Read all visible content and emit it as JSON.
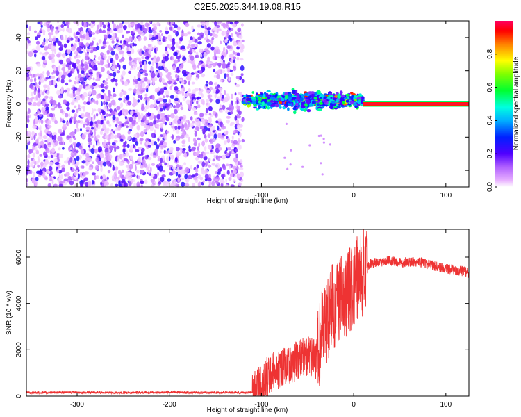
{
  "title": "C2E5.2025.344.19.08.R15",
  "chart_data": [
    {
      "id": "spectrogram",
      "type": "heatmap",
      "xlabel": "Height of straight line (km)",
      "ylabel": "Frequency (Hz)",
      "xlim": [
        -355,
        125
      ],
      "ylim": [
        -50,
        50
      ],
      "xticks": [
        -300,
        -200,
        -100,
        0,
        100
      ],
      "yticks": [
        -40,
        -20,
        0,
        20,
        40
      ],
      "colorbar": {
        "label": "Normalized spectral amplitude",
        "range": [
          0,
          1
        ],
        "ticks": [
          "0.0",
          "0.2",
          "0.4",
          "0.6",
          "0.8"
        ],
        "colormap": [
          "#ffffff",
          "#e040fb",
          "#8a2be2",
          "#0000ff",
          "#00bfff",
          "#00e5ff",
          "#00ff00",
          "#c8ff00",
          "#ffff00",
          "#ffa500",
          "#ff0000",
          "#ff0080"
        ]
      },
      "regions": [
        {
          "name": "noise",
          "x_range": [
            -355,
            -120
          ],
          "freq_range": [
            -50,
            50
          ],
          "amplitude": 0.15
        },
        {
          "name": "signal-cluster",
          "x_range": [
            -120,
            10
          ],
          "freq_center": 2,
          "freq_spread": 6,
          "amplitude": 0.35
        },
        {
          "name": "carrier-line",
          "x_range": [
            10,
            125
          ],
          "freq_center": 0,
          "amplitude": 1.0
        }
      ]
    },
    {
      "id": "snr",
      "type": "line",
      "xlabel": "Height of straight line (km)",
      "ylabel": "SNR (10 * v/v)",
      "xlim": [
        -355,
        125
      ],
      "ylim": [
        0,
        7200
      ],
      "xticks": [
        -300,
        -200,
        -100,
        0,
        100
      ],
      "yticks": [
        0,
        2000,
        4000,
        6000
      ],
      "series": [
        {
          "name": "SNR",
          "color": "#ee3333",
          "x": [
            -355,
            -300,
            -250,
            -200,
            -150,
            -110,
            -100,
            -90,
            -80,
            -70,
            -60,
            -50,
            -40,
            -35,
            -30,
            -25,
            -20,
            -15,
            -10,
            -5,
            0,
            5,
            10,
            15,
            20,
            30,
            40,
            50,
            60,
            70,
            80,
            90,
            100,
            110,
            125
          ],
          "y": [
            150,
            160,
            150,
            160,
            150,
            160,
            500,
            1000,
            1200,
            1400,
            1500,
            1800,
            1600,
            2600,
            3200,
            3800,
            3800,
            4100,
            4300,
            4600,
            4700,
            5000,
            5300,
            5650,
            5750,
            5800,
            5850,
            5750,
            5800,
            5800,
            5700,
            5600,
            5500,
            5450,
            5350
          ]
        }
      ]
    }
  ]
}
